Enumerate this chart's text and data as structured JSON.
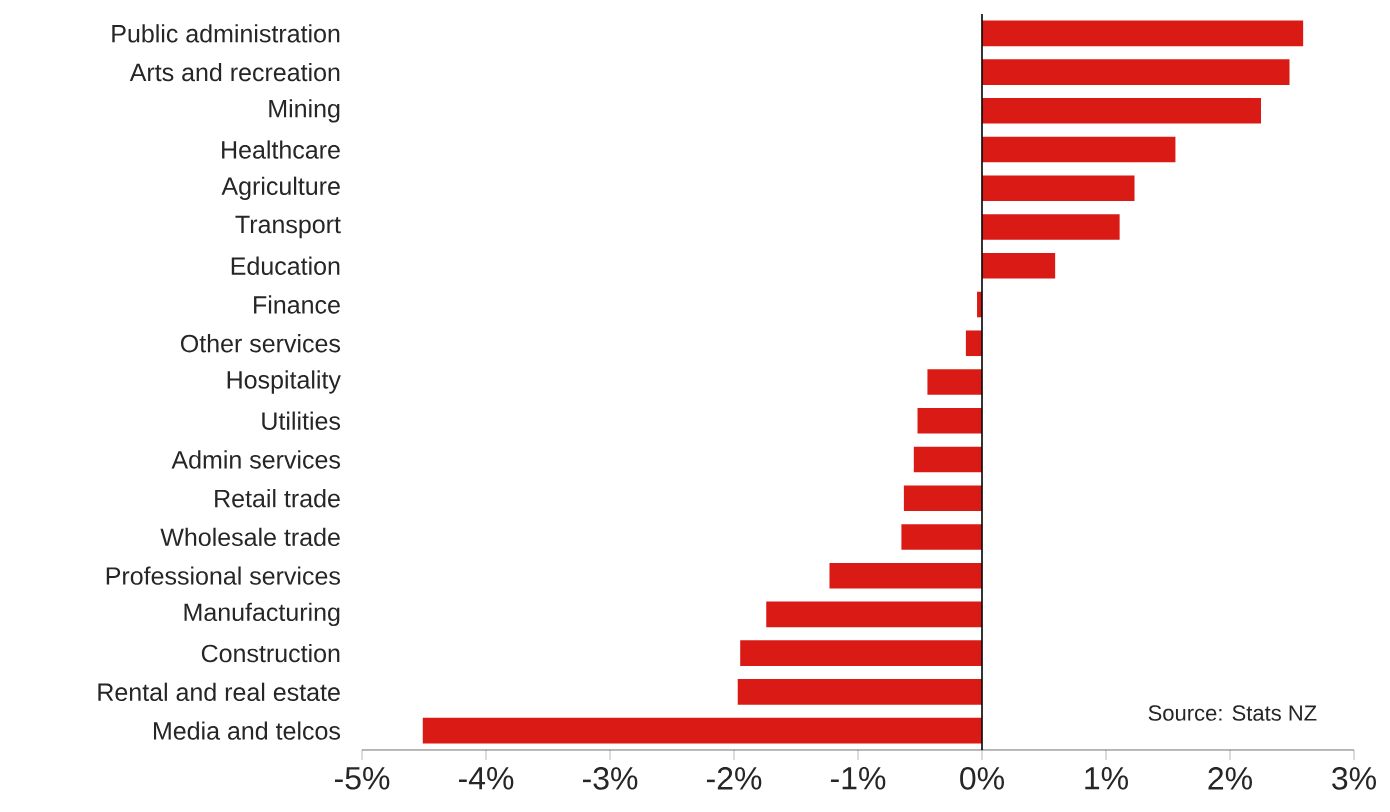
{
  "chart_data": {
    "type": "bar",
    "orientation": "horizontal",
    "categories": [
      "Public administration",
      "Arts and recreation",
      "Mining",
      "Healthcare",
      "Agriculture",
      "Transport",
      "Education",
      "Finance",
      "Other services",
      "Hospitality",
      "Utilities",
      "Admin services",
      "Retail trade",
      "Wholesale trade",
      "Professional services",
      "Manufacturing",
      "Construction",
      "Rental and real estate",
      "Media and telcos"
    ],
    "values": [
      2.59,
      2.48,
      2.25,
      1.56,
      1.23,
      1.11,
      0.59,
      -0.04,
      -0.13,
      -0.44,
      -0.52,
      -0.55,
      -0.63,
      -0.65,
      -1.23,
      -1.74,
      -1.95,
      -1.97,
      -4.51
    ],
    "color": "#da1a14",
    "xlim": [
      -5,
      3
    ],
    "xticks": [
      {
        "value": -5,
        "label": "-5%"
      },
      {
        "value": -4,
        "label": "-4%"
      },
      {
        "value": -3,
        "label": "-3%"
      },
      {
        "value": -2,
        "label": "-2%"
      },
      {
        "value": -1,
        "label": "-1%"
      },
      {
        "value": 0,
        "label": "0%"
      },
      {
        "value": 1,
        "label": "1%"
      },
      {
        "value": 2,
        "label": "2%"
      },
      {
        "value": 3,
        "label": "3%"
      }
    ],
    "annotations": [
      "Source: Stats NZ"
    ]
  }
}
